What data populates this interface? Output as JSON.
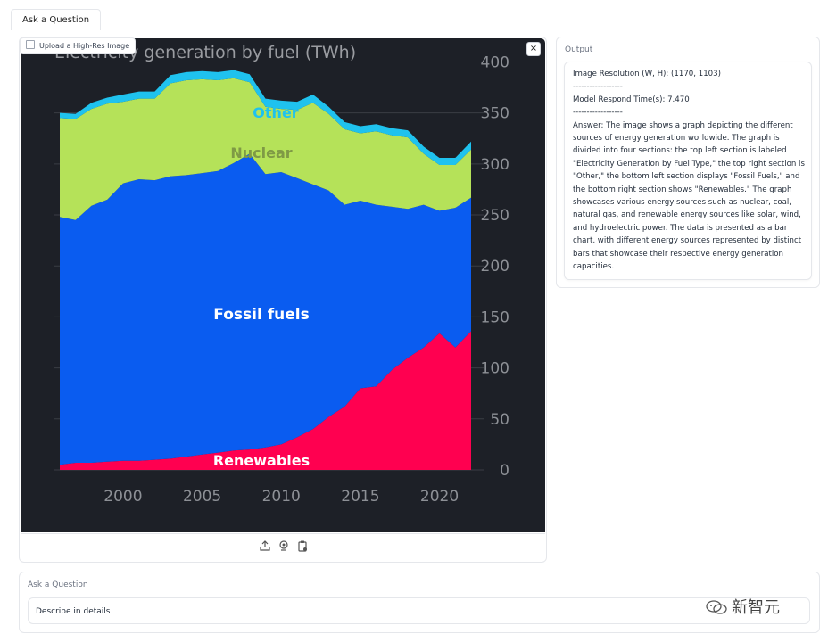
{
  "tabs": [
    "Ask a Question"
  ],
  "image_panel": {
    "upload_label": "Upload a High-Res Image",
    "close_glyph": "×",
    "tools": [
      "upload-icon",
      "webcam-icon",
      "clipboard-icon"
    ]
  },
  "chart_data": {
    "type": "area",
    "title": "Electricity generation by fuel (TWh)",
    "x": [
      1996,
      1997,
      1998,
      1999,
      2000,
      2001,
      2002,
      2003,
      2004,
      2005,
      2006,
      2007,
      2008,
      2009,
      2010,
      2011,
      2012,
      2013,
      2014,
      2015,
      2016,
      2017,
      2018,
      2019,
      2020,
      2021,
      2022
    ],
    "series": [
      {
        "name": "Renewables",
        "values": [
          5,
          7,
          7,
          8,
          9,
          9,
          10,
          11,
          13,
          15,
          17,
          19,
          20,
          22,
          25,
          32,
          40,
          52,
          62,
          80,
          82,
          98,
          110,
          120,
          134,
          120,
          136
        ]
      },
      {
        "name": "Fossil fuels",
        "values": [
          243,
          238,
          252,
          257,
          272,
          276,
          274,
          277,
          276,
          276,
          276,
          282,
          290,
          268,
          267,
          254,
          240,
          222,
          198,
          184,
          178,
          160,
          146,
          140,
          120,
          137,
          131
        ]
      },
      {
        "name": "Nuclear",
        "values": [
          97,
          99,
          95,
          94,
          80,
          79,
          80,
          91,
          93,
          92,
          89,
          83,
          70,
          66,
          62,
          67,
          80,
          75,
          74,
          66,
          72,
          70,
          70,
          50,
          45,
          42,
          47
        ]
      },
      {
        "name": "Other",
        "values": [
          5,
          5,
          6,
          6,
          7,
          7,
          7,
          8,
          8,
          8,
          8,
          8,
          8,
          8,
          8,
          8,
          8,
          7,
          7,
          7,
          7,
          7,
          7,
          7,
          7,
          7,
          8
        ]
      }
    ],
    "xticks": [
      2000,
      2005,
      2010,
      2015,
      2020
    ],
    "yticks": [
      0,
      50,
      100,
      150,
      200,
      250,
      300,
      350,
      400
    ],
    "ylim": [
      0,
      410
    ],
    "xlim": [
      1996,
      2022
    ],
    "grid": "horizontal",
    "colors": {
      "Renewables": "#ff0050",
      "Fossil fuels": "#0a5cf0",
      "Nuclear": "#b5e259",
      "Other": "#1fc2ee",
      "background": "#1d2027",
      "gridline": "#3a3d44",
      "tick_text": "#8d9096"
    }
  },
  "output": {
    "label": "Output",
    "text": "Image Resolution (W, H): (1170, 1103)\n------------------\nModel Respond Time(s): 7.470\n------------------\nAnswer: The image shows a graph depicting the different sources of energy generation worldwide. The graph is divided into four sections: the top left section is labeled \"Electricity Generation by Fuel Type,\" the top right section is \"Other,\" the bottom left section displays \"Fossil Fuels,\" and the bottom right section shows \"Renewables.\" The graph showcases various energy sources such as nuclear, coal, natural gas, and renewable energy sources like solar, wind, and hydroelectric power. The data is presented as a bar chart, with different energy sources represented by distinct bars that showcase their respective energy generation capacities."
  },
  "question": {
    "label": "Ask a Question",
    "value": "Describe in details"
  },
  "watermark": "新智元"
}
